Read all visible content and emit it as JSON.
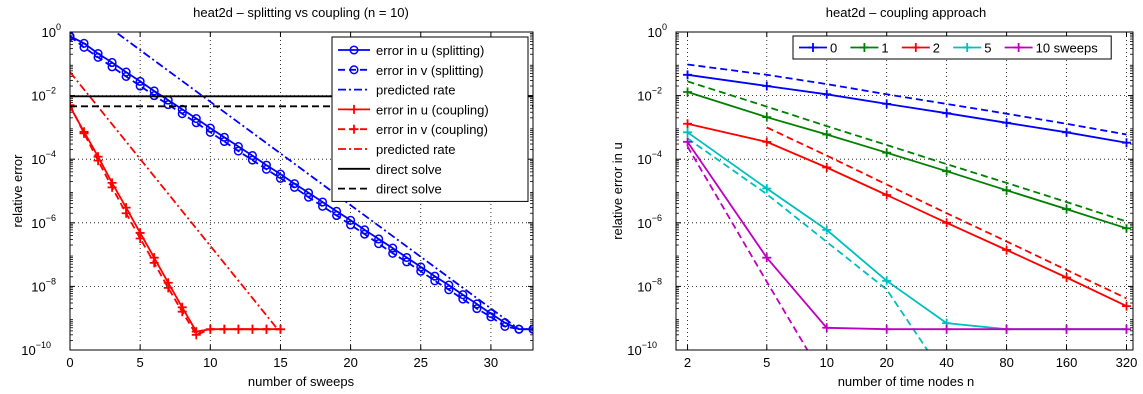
{
  "chart_data": [
    {
      "type": "line",
      "title": "heat2d – splitting vs coupling (n = 10)",
      "xlabel": "number of sweeps",
      "ylabel": "relative error",
      "xscale": "linear",
      "yscale": "log",
      "xlim": [
        0,
        33
      ],
      "ylim": [
        1e-10,
        1
      ],
      "xticks": [
        0,
        5,
        10,
        15,
        20,
        25,
        30
      ],
      "yticks": [
        {
          "base": "10",
          "exp": "0",
          "v": 1
        },
        {
          "base": "10",
          "exp": "−2",
          "v": 0.01
        },
        {
          "base": "10",
          "exp": "−4",
          "v": 0.0001
        },
        {
          "base": "10",
          "exp": "−6",
          "v": 1e-06
        },
        {
          "base": "10",
          "exp": "−8",
          "v": 1e-08
        },
        {
          "base": "10",
          "exp": "−10",
          "v": 1e-10
        }
      ],
      "grid": true,
      "legend_position": "top-right",
      "series": [
        {
          "name": "error in u (splitting)",
          "color": "#0000ff",
          "dash": "solid",
          "marker": "circle",
          "x": [
            0,
            1,
            2,
            3,
            4,
            5,
            6,
            7,
            8,
            9,
            10,
            11,
            12,
            13,
            14,
            15,
            16,
            17,
            18,
            19,
            20,
            21,
            22,
            23,
            24,
            25,
            26,
            27,
            28,
            29,
            30,
            31,
            32,
            33
          ],
          "y": [
            0.74,
            0.44,
            0.21,
            0.11,
            0.055,
            0.028,
            0.014,
            0.0072,
            0.0037,
            0.0019,
            0.00095,
            0.00049,
            0.00025,
            0.00013,
            6.5e-05,
            3.4e-05,
            1.7e-05,
            8.8e-06,
            4.5e-06,
            2.3e-06,
            1.2e-06,
            6e-07,
            3.1e-07,
            1.6e-07,
            8.1e-08,
            4.1e-08,
            2.1e-08,
            1.1e-08,
            5.5e-09,
            2.8e-09,
            1.4e-09,
            7.2e-10,
            4.5e-10,
            4.5e-10
          ]
        },
        {
          "name": "error in v (splitting)",
          "color": "#0000ff",
          "dash": "dashed",
          "marker": "circle",
          "x": [
            0,
            1,
            2,
            3,
            4,
            5,
            6,
            7,
            8,
            9,
            10,
            11,
            12,
            13,
            14,
            15,
            16,
            17,
            18,
            19,
            20,
            21,
            22,
            23,
            24,
            25,
            26,
            27,
            28,
            29,
            30,
            31,
            32,
            33
          ],
          "y": [
            0.72,
            0.33,
            0.16,
            0.08,
            0.04,
            0.02,
            0.01,
            0.0052,
            0.0027,
            0.0014,
            0.0007,
            0.00036,
            0.00018,
            9.4e-05,
            4.8e-05,
            2.5e-05,
            1.3e-05,
            6.4e-06,
            3.3e-06,
            1.7e-06,
            8.6e-07,
            4.4e-07,
            2.2e-07,
            1.1e-07,
            5.9e-08,
            3e-08,
            1.5e-08,
            7.8e-09,
            4e-09,
            2e-09,
            1.1e-09,
            5.5e-10,
            4.5e-10,
            4.5e-10
          ]
        },
        {
          "name": "predicted rate",
          "color": "#0000ff",
          "dash": "dashdot",
          "marker": "none",
          "x": [
            3.4,
            32
          ],
          "y": [
            0.9,
            4.5e-10
          ]
        },
        {
          "name": "error in u (coupling)",
          "color": "#ff0000",
          "dash": "solid",
          "marker": "plus",
          "x": [
            0,
            1,
            2,
            3,
            4,
            5,
            6,
            7,
            8,
            9,
            10,
            11,
            12,
            13,
            14,
            15
          ],
          "y": [
            0.0045,
            0.00073,
            0.00012,
            1.8e-05,
            3e-06,
            4.8e-07,
            8e-08,
            1.3e-08,
            2.2e-09,
            3.8e-10,
            4.5e-10,
            4.5e-10,
            4.5e-10,
            4.5e-10,
            4.5e-10,
            4.5e-10
          ]
        },
        {
          "name": "error in v (coupling)",
          "color": "#ff0000",
          "dash": "dashed",
          "marker": "plus",
          "x": [
            0,
            1,
            2,
            3,
            4,
            5,
            6,
            7,
            8,
            9,
            10,
            11,
            12,
            13,
            14,
            15
          ],
          "y": [
            0.005,
            0.00065,
            9e-05,
            1.3e-05,
            2e-06,
            3.2e-07,
            5.5e-08,
            9e-09,
            1.6e-09,
            3e-10,
            4.5e-10,
            4.5e-10,
            4.5e-10,
            4.5e-10,
            4.5e-10,
            4.5e-10
          ]
        },
        {
          "name": "predicted rate",
          "color": "#ff0000",
          "dash": "dashdot",
          "marker": "none",
          "x": [
            0,
            14.8
          ],
          "y": [
            0.055,
            4.5e-10
          ]
        },
        {
          "name": "direct solve",
          "color": "#000000",
          "dash": "solid",
          "marker": "none",
          "x": [
            0,
            33
          ],
          "y": [
            0.0095,
            0.0095
          ]
        },
        {
          "name": "direct solve",
          "color": "#000000",
          "dash": "dashed",
          "marker": "none",
          "x": [
            0,
            33
          ],
          "y": [
            0.0046,
            0.0046
          ]
        }
      ]
    },
    {
      "type": "line",
      "title": "heat2d – coupling approach",
      "xlabel": "number of time nodes n",
      "ylabel": "relative error in u",
      "xscale": "log",
      "yscale": "log",
      "xlim": [
        1.75,
        345
      ],
      "ylim": [
        1e-10,
        1
      ],
      "xticks": [
        2,
        5,
        10,
        20,
        40,
        80,
        160,
        320
      ],
      "yticks": [
        {
          "base": "10",
          "exp": "0",
          "v": 1
        },
        {
          "base": "10",
          "exp": "−2",
          "v": 0.01
        },
        {
          "base": "10",
          "exp": "−4",
          "v": 0.0001
        },
        {
          "base": "10",
          "exp": "−6",
          "v": 1e-06
        },
        {
          "base": "10",
          "exp": "−8",
          "v": 1e-08
        },
        {
          "base": "10",
          "exp": "−10",
          "v": 1e-10
        }
      ],
      "grid": true,
      "legend_position": "top-right",
      "legend_labels": [
        "0",
        "1",
        "2",
        "5",
        "10 sweeps"
      ],
      "series": [
        {
          "name": "0",
          "color": "#0000ff",
          "dash": "solid",
          "marker": "plus",
          "x": [
            2,
            5,
            10,
            20,
            40,
            80,
            160,
            320
          ],
          "y": [
            0.045,
            0.02,
            0.011,
            0.0055,
            0.0028,
            0.0014,
            0.0007,
            0.00033
          ]
        },
        {
          "name": "0",
          "color": "#0000ff",
          "dash": "dashed",
          "marker": "none",
          "x": [
            2,
            5,
            10,
            20,
            40,
            80,
            160,
            320
          ],
          "y": [
            0.095,
            0.045,
            0.023,
            0.011,
            0.0055,
            0.0027,
            0.0013,
            0.0006
          ]
        },
        {
          "name": "1",
          "color": "#008000",
          "dash": "solid",
          "marker": "plus",
          "x": [
            2,
            5,
            10,
            20,
            40,
            80,
            160,
            320
          ],
          "y": [
            0.013,
            0.0021,
            0.0006,
            0.00016,
            4.2e-05,
            1.05e-05,
            2.7e-06,
            6.7e-07
          ]
        },
        {
          "name": "1",
          "color": "#008000",
          "dash": "dashed",
          "marker": "none",
          "x": [
            2,
            5,
            10,
            20,
            40,
            80,
            160,
            320
          ],
          "y": [
            0.028,
            0.0045,
            0.0011,
            0.00028,
            7e-05,
            1.8e-05,
            4.5e-06,
            1.1e-06
          ]
        },
        {
          "name": "2",
          "color": "#ff0000",
          "dash": "solid",
          "marker": "plus",
          "x": [
            2,
            5,
            10,
            20,
            40,
            80,
            160,
            320
          ],
          "y": [
            0.0013,
            0.00035,
            5.5e-05,
            7.5e-06,
            1e-06,
            1.4e-07,
            1.9e-08,
            2.4e-09
          ]
        },
        {
          "name": "2",
          "color": "#ff0000",
          "dash": "dashed",
          "marker": "none",
          "x": [
            5,
            10,
            20,
            40,
            80,
            160,
            320
          ],
          "y": [
            0.001,
            0.00013,
            1.6e-05,
            2e-06,
            2.6e-07,
            3.3e-08,
            4.2e-09
          ]
        },
        {
          "name": "5",
          "color": "#00bfbf",
          "dash": "solid",
          "marker": "plus",
          "x": [
            2,
            5,
            10,
            20,
            40,
            80,
            160,
            320
          ],
          "y": [
            0.0007,
            1.2e-05,
            6e-07,
            1.5e-08,
            7e-10,
            4.5e-10,
            4.5e-10,
            4.5e-10
          ]
        },
        {
          "name": "5",
          "color": "#00bfbf",
          "dash": "dashed",
          "marker": "none",
          "x": [
            2,
            5,
            10,
            20,
            32
          ],
          "y": [
            0.00045,
            8e-06,
            2.5e-07,
            8e-09,
            1e-10
          ]
        },
        {
          "name": "10 sweeps",
          "color": "#bf00bf",
          "dash": "solid",
          "marker": "plus",
          "x": [
            2,
            5,
            10,
            20,
            40,
            80,
            160,
            320
          ],
          "y": [
            0.00035,
            8e-08,
            5e-10,
            4.5e-10,
            4.5e-10,
            4.5e-10,
            4.5e-10,
            4.5e-10
          ]
        },
        {
          "name": "10 sweeps",
          "color": "#bf00bf",
          "dash": "dashed",
          "marker": "none",
          "x": [
            2,
            5,
            8
          ],
          "y": [
            0.00025,
            1.4e-08,
            1e-10
          ]
        }
      ]
    }
  ]
}
